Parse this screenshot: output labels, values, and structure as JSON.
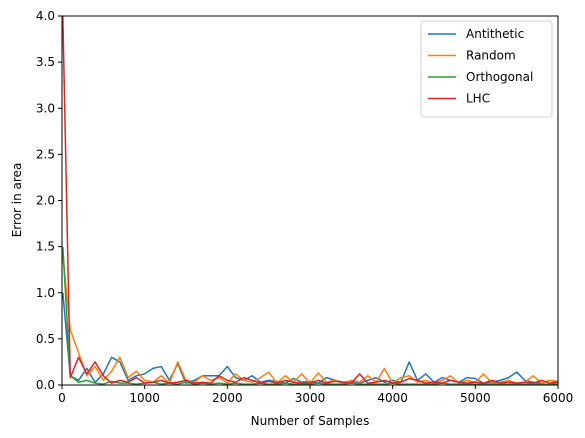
{
  "chart_data": {
    "type": "line",
    "title": "",
    "xlabel": "Number of Samples",
    "ylabel": "Error in area",
    "xlim": [
      0,
      6000
    ],
    "ylim": [
      0,
      4.0
    ],
    "xticks": [
      "0",
      "1000",
      "2000",
      "3000",
      "4000",
      "5000",
      "6000"
    ],
    "yticks": [
      "0.0",
      "0.5",
      "1.0",
      "1.5",
      "2.0",
      "2.5",
      "3.0",
      "3.5",
      "4.0"
    ],
    "grid": false,
    "legend_position": "top-right",
    "x": [
      10,
      100,
      200,
      300,
      400,
      500,
      600,
      700,
      800,
      900,
      1000,
      1100,
      1200,
      1300,
      1400,
      1500,
      1600,
      1700,
      1800,
      1900,
      2000,
      2100,
      2200,
      2300,
      2400,
      2500,
      2600,
      2700,
      2800,
      2900,
      3000,
      3100,
      3200,
      3300,
      3400,
      3500,
      3600,
      3700,
      3800,
      3900,
      4000,
      4100,
      4200,
      4300,
      4400,
      4500,
      4600,
      4700,
      4800,
      4900,
      5000,
      5100,
      5200,
      5300,
      5400,
      5500,
      5600,
      5700,
      5800,
      5900,
      6000
    ],
    "series": [
      {
        "name": "Antithetic",
        "color": "#1f77b4",
        "values": [
          1.0,
          0.1,
          0.05,
          0.18,
          0.03,
          0.12,
          0.3,
          0.25,
          0.05,
          0.1,
          0.12,
          0.18,
          0.2,
          0.05,
          0.23,
          0.02,
          0.05,
          0.1,
          0.1,
          0.1,
          0.2,
          0.08,
          0.05,
          0.1,
          0.03,
          0.05,
          0.04,
          0.02,
          0.07,
          0.03,
          0.04,
          0.02,
          0.08,
          0.05,
          0.03,
          0.04,
          0.02,
          0.05,
          0.08,
          0.03,
          0.05,
          0.03,
          0.25,
          0.05,
          0.12,
          0.03,
          0.08,
          0.05,
          0.03,
          0.08,
          0.07,
          0.02,
          0.03,
          0.05,
          0.08,
          0.14,
          0.05,
          0.03,
          0.02,
          0.05,
          0.03
        ]
      },
      {
        "name": "Random",
        "color": "#ff7f0e",
        "values": [
          1.4,
          0.6,
          0.35,
          0.1,
          0.2,
          0.05,
          0.15,
          0.3,
          0.08,
          0.15,
          0.05,
          0.03,
          0.1,
          0.02,
          0.25,
          0.05,
          0.03,
          0.1,
          0.05,
          0.08,
          0.02,
          0.12,
          0.05,
          0.03,
          0.08,
          0.14,
          0.02,
          0.1,
          0.03,
          0.12,
          0.02,
          0.13,
          0.03,
          0.05,
          0.02,
          0.05,
          0.03,
          0.1,
          0.03,
          0.18,
          0.02,
          0.08,
          0.1,
          0.03,
          0.05,
          0.02,
          0.05,
          0.1,
          0.02,
          0.05,
          0.03,
          0.12,
          0.02,
          0.03,
          0.05,
          0.02,
          0.03,
          0.1,
          0.02,
          0.05,
          0.04
        ]
      },
      {
        "name": "Orthogonal",
        "color": "#2ca02c",
        "values": [
          1.5,
          0.1,
          0.03,
          0.05,
          0.02,
          0.01,
          0.04,
          0.02,
          0.02,
          0.01,
          0.02,
          0.03,
          0.01,
          0.02,
          0.01,
          0.03,
          0.01,
          0.02,
          0.01,
          0.02,
          0.01,
          0.02,
          0.01,
          0.01,
          0.02,
          0.01,
          0.01,
          0.02,
          0.01,
          0.01,
          0.01,
          0.02,
          0.01,
          0.01,
          0.01,
          0.02,
          0.01,
          0.01,
          0.01,
          0.01,
          0.02,
          0.01,
          0.01,
          0.01,
          0.01,
          0.01,
          0.02,
          0.01,
          0.01,
          0.01,
          0.01,
          0.01,
          0.01,
          0.01,
          0.01,
          0.01,
          0.01,
          0.01,
          0.01,
          0.01,
          0.01
        ]
      },
      {
        "name": "LHC",
        "color": "#d62728",
        "values": [
          4.0,
          0.08,
          0.3,
          0.12,
          0.25,
          0.1,
          0.02,
          0.05,
          0.03,
          0.08,
          0.02,
          0.03,
          0.05,
          0.02,
          0.03,
          0.05,
          0.02,
          0.03,
          0.02,
          0.1,
          0.05,
          0.03,
          0.08,
          0.05,
          0.02,
          0.04,
          0.02,
          0.05,
          0.03,
          0.02,
          0.02,
          0.05,
          0.02,
          0.04,
          0.03,
          0.02,
          0.12,
          0.02,
          0.03,
          0.05,
          0.02,
          0.03,
          0.07,
          0.05,
          0.02,
          0.03,
          0.02,
          0.05,
          0.03,
          0.02,
          0.03,
          0.02,
          0.05,
          0.02,
          0.03,
          0.02,
          0.03,
          0.02,
          0.05,
          0.02,
          0.03
        ]
      }
    ]
  }
}
